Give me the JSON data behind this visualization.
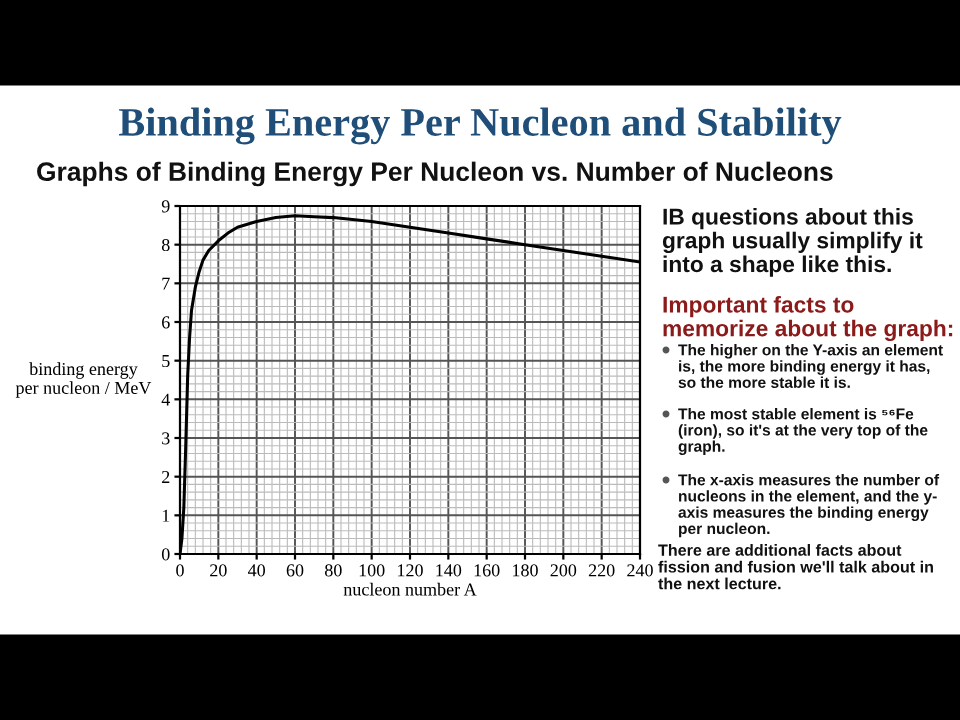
{
  "chart_data": {
    "type": "line",
    "title": "Binding Energy Per Nucleon and Stability",
    "subtitle": "Graphs of Binding Energy Per Nucleon vs. Number of Nucleons",
    "xlabel": "nucleon number A",
    "ylabel": "binding energy\nper nucleon / MeV",
    "x": [
      0,
      1,
      2,
      3,
      4,
      5,
      6,
      8,
      10,
      12,
      15,
      20,
      25,
      30,
      40,
      50,
      60,
      70,
      80,
      100,
      120,
      140,
      160,
      180,
      200,
      220,
      240
    ],
    "series": [
      {
        "color": "#000000",
        "values": [
          0,
          0.4,
          1.2,
          2.8,
          4.6,
          5.6,
          6.3,
          6.9,
          7.3,
          7.6,
          7.85,
          8.1,
          8.3,
          8.45,
          8.6,
          8.7,
          8.75,
          8.72,
          8.7,
          8.6,
          8.45,
          8.3,
          8.15,
          8.0,
          7.85,
          7.7,
          7.55
        ]
      }
    ],
    "xlim": [
      0,
      240
    ],
    "ylim": [
      0,
      9
    ],
    "xticks": [
      0,
      20,
      40,
      60,
      80,
      100,
      120,
      140,
      160,
      180,
      200,
      220,
      240
    ],
    "yticks": [
      0,
      1,
      2,
      3,
      4,
      5,
      6,
      7,
      8,
      9
    ],
    "grid": true,
    "legend": false,
    "marker": "none",
    "line_style": "solid",
    "annotations": [
      "IB questions about this\ngraph usually simplify it\ninto a shape like this.",
      "Important facts to\nmemorize about the graph:",
      "The higher on the Y-axis an element\nis, the more binding energy it has,\nso the more stable it is.",
      "The most stable element is ⁵⁶Fe\n(iron), so it's at the very top of the\ngraph.",
      "The x-axis measures the number of\nnucleons in the element, and the y-\naxis measures the binding energy\nper nucleon.",
      "There are additional facts about\nfission and fusion we'll talk about in\nthe next lecture."
    ]
  }
}
